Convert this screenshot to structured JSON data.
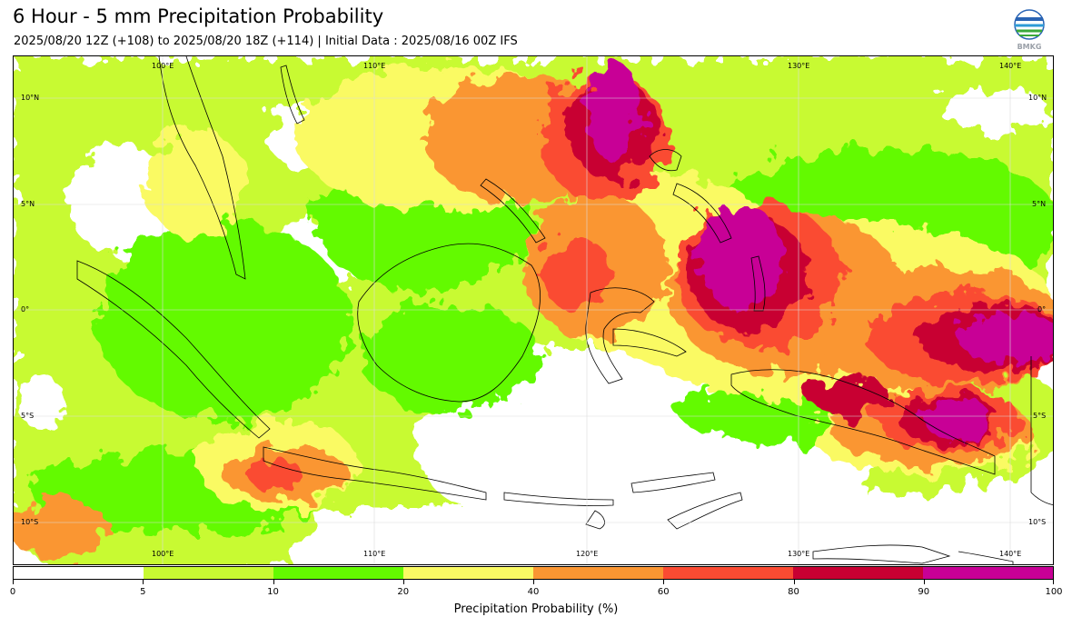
{
  "title": "6 Hour - 5 mm Precipitation Probability",
  "subtitle": "2025/08/20 12Z (+108) to 2025/08/20 18Z (+114) | Initial Data : 2025/08/16 00Z IFS",
  "logo_text": "BMKG",
  "map": {
    "lon_labels": [
      "100°E",
      "110°E",
      "120°E",
      "130°E",
      "140°E"
    ],
    "lat_labels": [
      "10°N",
      "5°N",
      "0°",
      "5°S",
      "10°S"
    ],
    "extent": {
      "lon": [
        93,
        142
      ],
      "lat": [
        -11.5,
        12.5
      ]
    }
  },
  "colorbar": {
    "title": "Precipitation Probability (%)",
    "ticks": [
      "0",
      "5",
      "10",
      "20",
      "40",
      "60",
      "80",
      "90",
      "100"
    ],
    "colors": [
      "#ffffff",
      "#c8fa32",
      "#64fa00",
      "#fafa64",
      "#fa9632",
      "#fa4b32",
      "#c80032",
      "#c80096"
    ]
  }
}
